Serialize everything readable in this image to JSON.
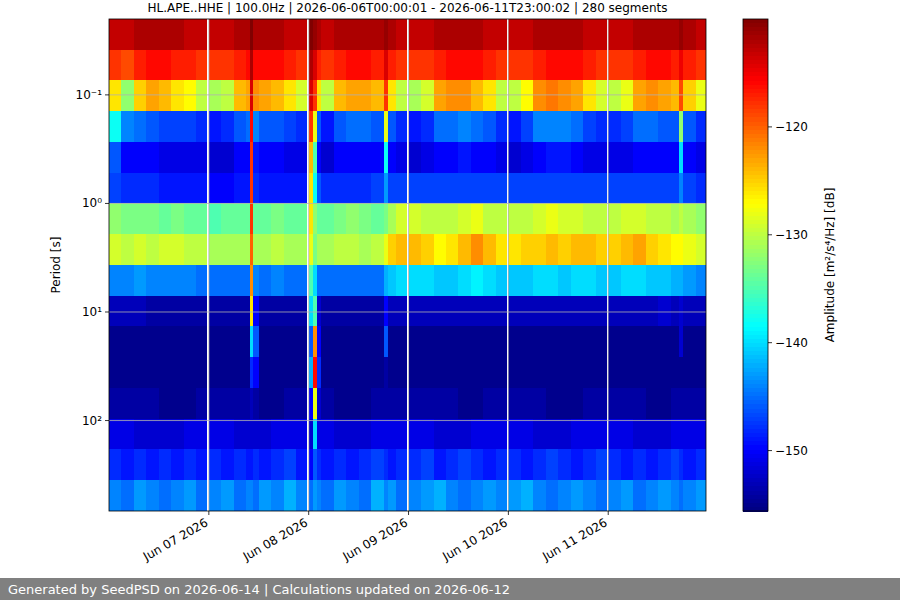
{
  "chart_data": {
    "type": "heatmap",
    "title": "HL.APE..HHE | 100.0Hz | 2026-06-06T00:00:01 - 2026-06-11T23:00:02 | 280 segments",
    "y_label": "Period [s]",
    "footer": "Generated by SeedPSD on 2026-06-14 | Calculations updated on 2026-06-12",
    "log": "y",
    "grid": true,
    "xlim": [
      "2026-06-06T00:00",
      "2026-06-11T23:30"
    ],
    "ylim": [
      0.02,
      681
    ],
    "xticks": [
      {
        "value": "2026-06-07T00:00",
        "label": "Jun 07 2026"
      },
      {
        "value": "2026-06-08T00:00",
        "label": "Jun 08 2026"
      },
      {
        "value": "2026-06-09T00:00",
        "label": "Jun 09 2026"
      },
      {
        "value": "2026-06-10T00:00",
        "label": "Jun 10 2026"
      },
      {
        "value": "2026-06-11T00:00",
        "label": "Jun 11 2026"
      }
    ],
    "yticks": [
      {
        "value": 0.1,
        "label": "10⁻¹"
      },
      {
        "value": 1,
        "label": "10⁰"
      },
      {
        "value": 10,
        "label": "10¹"
      },
      {
        "value": 100,
        "label": "10²"
      }
    ],
    "colorbar": {
      "label": "Amplitude [m²/s⁴/Hz] [dB]",
      "range": [
        -155.6,
        -110
      ],
      "ticks": [
        {
          "value": -150,
          "label": "−150"
        },
        {
          "value": -140,
          "label": "−140"
        },
        {
          "value": -130,
          "label": "−130"
        },
        {
          "value": -120,
          "label": "−120"
        }
      ]
    },
    "x": [
      "2026-06-06T00:00",
      "2026-06-06T03:00",
      "2026-06-06T06:00",
      "2026-06-06T09:00",
      "2026-06-06T12:00",
      "2026-06-06T15:00",
      "2026-06-06T18:00",
      "2026-06-06T21:00",
      "2026-06-06T23:30",
      "2026-06-07T00:00",
      "2026-06-07T03:00",
      "2026-06-07T06:00",
      "2026-06-07T09:00",
      "2026-06-07T09:50",
      "2026-06-07T10:30",
      "2026-06-07T12:00",
      "2026-06-07T15:00",
      "2026-06-07T18:00",
      "2026-06-07T21:00",
      "2026-06-07T23:30",
      "2026-06-08T00:00",
      "2026-06-08T01:00",
      "2026-06-08T02:00",
      "2026-06-08T03:00",
      "2026-06-08T06:00",
      "2026-06-08T09:00",
      "2026-06-08T12:00",
      "2026-06-08T15:00",
      "2026-06-08T18:00",
      "2026-06-08T19:00",
      "2026-06-08T21:00",
      "2026-06-08T23:30",
      "2026-06-09T00:00",
      "2026-06-09T03:00",
      "2026-06-09T06:00",
      "2026-06-09T09:00",
      "2026-06-09T12:00",
      "2026-06-09T15:00",
      "2026-06-09T18:00",
      "2026-06-09T21:00",
      "2026-06-09T23:30",
      "2026-06-10T00:00",
      "2026-06-10T03:00",
      "2026-06-10T06:00",
      "2026-06-10T09:00",
      "2026-06-10T12:00",
      "2026-06-10T15:00",
      "2026-06-10T18:00",
      "2026-06-10T21:00",
      "2026-06-10T23:30",
      "2026-06-11T00:00",
      "2026-06-11T03:00",
      "2026-06-11T06:00",
      "2026-06-11T09:00",
      "2026-06-11T12:00",
      "2026-06-11T15:00",
      "2026-06-11T17:00",
      "2026-06-11T18:00",
      "2026-06-11T21:00"
    ],
    "y": [
      0.028,
      0.053,
      0.102,
      0.196,
      0.376,
      0.72,
      1.39,
      2.66,
      5.1,
      9.8,
      18.8,
      36.1,
      69.5,
      133,
      256,
      492
    ],
    "values": [
      [
        -113,
        -113,
        -112,
        -112,
        -112,
        -112,
        -113,
        -113,
        null,
        -113,
        -113,
        -112,
        -112,
        -110,
        -112,
        -112,
        -112,
        -113,
        -113,
        null,
        -110,
        -111,
        -112,
        -113,
        -112,
        -112,
        -112,
        -112,
        -111,
        -112,
        -113,
        null,
        -113,
        -113,
        -112,
        -112,
        -112,
        -112,
        -113,
        -113,
        null,
        -113,
        -113,
        -112,
        -112,
        -112,
        -112,
        -113,
        -113,
        null,
        -113,
        -113,
        -112,
        -112,
        -112,
        -112,
        -111,
        -112,
        -113
      ],
      [
        -118,
        -119,
        -117,
        -116,
        -116,
        -117,
        -117,
        -118,
        null,
        -118,
        -118,
        -117,
        -116,
        -112,
        -116,
        -116,
        -116,
        -117,
        -118,
        null,
        -112,
        -114,
        -117,
        -118,
        -117,
        -116,
        -116,
        -117,
        -114,
        -117,
        -118,
        null,
        -118,
        -118,
        -117,
        -116,
        -116,
        -116,
        -117,
        -118,
        null,
        -118,
        -118,
        -117,
        -116,
        -116,
        -116,
        -117,
        -118,
        null,
        -118,
        -118,
        -117,
        -116,
        -116,
        -117,
        -115,
        -117,
        -118
      ],
      [
        -126,
        -132,
        -125,
        -123,
        -124,
        -126,
        -127,
        -130,
        null,
        -131,
        -130,
        -124,
        -123,
        -114,
        -122,
        -123,
        -124,
        -126,
        -129,
        null,
        -114,
        -118,
        -126,
        -130,
        -124,
        -123,
        -123,
        -124,
        -118,
        -126,
        -130,
        null,
        -131,
        -129,
        -123,
        -122,
        -122,
        -124,
        -126,
        -130,
        null,
        -130,
        -127,
        -122,
        -121,
        -122,
        -123,
        -126,
        -129,
        null,
        -130,
        -128,
        -123,
        -122,
        -123,
        -124,
        -119,
        -125,
        -128
      ],
      [
        -138,
        -144,
        -145,
        -146,
        -147,
        -147,
        -147,
        -148,
        null,
        -149,
        -148,
        -146,
        -145,
        -116,
        -144,
        -146,
        -146,
        -147,
        -148,
        null,
        -118,
        -128,
        -146,
        -149,
        -146,
        -145,
        -145,
        -146,
        -128,
        -146,
        -148,
        null,
        -149,
        -148,
        -145,
        -145,
        -144,
        -145,
        -146,
        -148,
        null,
        -149,
        -147,
        -144,
        -144,
        -144,
        -145,
        -147,
        -148,
        null,
        -148,
        -147,
        -145,
        -145,
        -146,
        -146,
        -132,
        -146,
        -148
      ],
      [
        -146,
        -150,
        -150,
        -150,
        -151,
        -151,
        -151,
        -151,
        null,
        -152,
        -152,
        -150,
        -150,
        -118,
        -149,
        -150,
        -150,
        -151,
        -151,
        null,
        -124,
        -135,
        -150,
        -152,
        -150,
        -150,
        -150,
        -150,
        -138,
        -150,
        -151,
        null,
        -152,
        -151,
        -150,
        -150,
        -149,
        -150,
        -150,
        -151,
        null,
        -152,
        -151,
        -150,
        -149,
        -149,
        -150,
        -151,
        -151,
        null,
        -151,
        -151,
        -150,
        -150,
        -150,
        -150,
        -140,
        -150,
        -151
      ],
      [
        -147,
        -148,
        -148,
        -148,
        -149,
        -149,
        -149,
        -149,
        null,
        -150,
        -150,
        -149,
        -149,
        -118,
        -148,
        -149,
        -149,
        -149,
        -149,
        null,
        -126,
        -138,
        -146,
        -148,
        -148,
        -148,
        -148,
        -147,
        -143,
        -147,
        -147,
        null,
        -147,
        -147,
        -147,
        -147,
        -147,
        -147,
        -147,
        -147,
        null,
        -147,
        -147,
        -147,
        -147,
        -147,
        -147,
        -147,
        -147,
        null,
        -147,
        -147,
        -147,
        -147,
        -147,
        -147,
        -144,
        -147,
        -148
      ],
      [
        -132,
        -133,
        -133,
        -133,
        -134,
        -133,
        -134,
        -134,
        null,
        -135,
        -134,
        -134,
        -134,
        -118,
        -134,
        -134,
        -133,
        -134,
        -134,
        null,
        -126,
        -132,
        -134,
        -134,
        -133,
        -132,
        -133,
        -134,
        -133,
        -131,
        -129,
        null,
        -129,
        -130,
        -130,
        -130,
        -129,
        -128,
        -130,
        -130,
        null,
        -130,
        -130,
        -129,
        -128,
        -129,
        -129,
        -130,
        -130,
        null,
        -130,
        -129,
        -129,
        -130,
        -130,
        -131,
        -130,
        -131,
        -132
      ],
      [
        -129,
        -130,
        -129,
        -130,
        -129,
        -129,
        -130,
        -130,
        null,
        -131,
        -131,
        -131,
        -131,
        -120,
        -131,
        -131,
        -130,
        -131,
        -131,
        null,
        -128,
        -133,
        -131,
        -131,
        -130,
        -130,
        -131,
        -130,
        -128,
        -125,
        -124,
        null,
        -124,
        -125,
        -127,
        -126,
        -124,
        -122,
        -124,
        -126,
        null,
        -126,
        -125,
        -125,
        -124,
        -125,
        -124,
        -124,
        -125,
        null,
        -125,
        -124,
        -123,
        -125,
        -126,
        -127,
        -127,
        -128,
        -129
      ],
      [
        -144,
        -144,
        -143,
        -144,
        -144,
        -144,
        -144,
        -145,
        null,
        -145,
        -145,
        -145,
        -145,
        -122,
        -144,
        -145,
        -144,
        -145,
        -145,
        null,
        -135,
        -140,
        -145,
        -145,
        -145,
        -145,
        -145,
        -145,
        -142,
        -141,
        -140,
        null,
        -140,
        -140,
        -141,
        -141,
        -140,
        -139,
        -140,
        -141,
        null,
        -141,
        -141,
        -140,
        -140,
        -141,
        -140,
        -140,
        -141,
        null,
        -141,
        -140,
        -140,
        -141,
        -141,
        -142,
        -142,
        -143,
        -144
      ],
      [
        -153,
        -153,
        -153,
        -154,
        -154,
        -154,
        -154,
        -154,
        null,
        -154,
        -154,
        -154,
        -154,
        -126,
        -150,
        -154,
        -154,
        -154,
        -154,
        null,
        -140,
        -135,
        -152,
        -154,
        -154,
        -154,
        -154,
        -154,
        -150,
        -153,
        -153,
        null,
        -153,
        -153,
        -153,
        -153,
        -153,
        -153,
        -153,
        -153,
        null,
        -153,
        -153,
        -153,
        -153,
        -153,
        -153,
        -153,
        -153,
        null,
        -153,
        -153,
        -153,
        -153,
        -152,
        -153,
        -152,
        -153,
        -153
      ],
      [
        -155,
        -155,
        -155,
        -155,
        -155,
        -155,
        -155,
        -155,
        null,
        -155,
        -155,
        -155,
        -155,
        -140,
        -146,
        -155,
        -155,
        -155,
        -155,
        null,
        -146,
        -122,
        -150,
        -155,
        -155,
        -155,
        -155,
        -155,
        -146,
        -155,
        -155,
        null,
        -155,
        -155,
        -155,
        -155,
        -155,
        -155,
        -155,
        -155,
        null,
        -155,
        -155,
        -155,
        -155,
        -155,
        -155,
        -155,
        -155,
        null,
        -155,
        -155,
        -155,
        -155,
        -155,
        -155,
        -152,
        -155,
        -155
      ],
      [
        -155,
        -155,
        -155,
        -155,
        -155,
        -155,
        -155,
        -155,
        null,
        -155,
        -155,
        -155,
        -155,
        -148,
        -150,
        -155,
        -155,
        -155,
        -155,
        null,
        -142,
        -116,
        -148,
        -155,
        -155,
        -155,
        -155,
        -155,
        -154,
        -155,
        -155,
        null,
        -155,
        -155,
        -155,
        -155,
        -155,
        -155,
        -155,
        -155,
        null,
        -155,
        -155,
        -155,
        -155,
        -155,
        -155,
        -155,
        -155,
        null,
        -155,
        -155,
        -155,
        -155,
        -155,
        -155,
        -155,
        -155,
        -155
      ],
      [
        -154,
        -154,
        -154,
        -154,
        -155,
        -155,
        -155,
        -154,
        null,
        -154,
        -154,
        -154,
        -154,
        -153,
        -154,
        -155,
        -155,
        -154,
        -154,
        null,
        -150,
        -128,
        -152,
        -154,
        -155,
        -155,
        -155,
        -154,
        -154,
        -154,
        -154,
        null,
        -154,
        -154,
        -154,
        -154,
        -155,
        -155,
        -154,
        -154,
        null,
        -154,
        -154,
        -154,
        -155,
        -155,
        -155,
        -154,
        -154,
        null,
        -154,
        -154,
        -154,
        -155,
        -155,
        -154,
        -154,
        -154,
        -154
      ],
      [
        -151,
        -151,
        -152,
        -152,
        -152,
        -152,
        -151,
        -151,
        null,
        -151,
        -151,
        -152,
        -152,
        -152,
        -152,
        -152,
        -151,
        -151,
        -151,
        null,
        -152,
        -140,
        -151,
        -151,
        -152,
        -152,
        -152,
        -151,
        -151,
        -151,
        -151,
        null,
        -151,
        -151,
        -152,
        -152,
        -152,
        -151,
        -151,
        -151,
        null,
        -151,
        -151,
        -152,
        -152,
        -152,
        -151,
        -151,
        -151,
        null,
        -151,
        -151,
        -152,
        -152,
        -152,
        -151,
        -151,
        -151,
        -151
      ],
      [
        -148,
        -149,
        -148,
        -149,
        -148,
        -149,
        -148,
        -149,
        null,
        -148,
        -149,
        -148,
        -149,
        -149,
        -148,
        -149,
        -148,
        -147,
        -149,
        null,
        -150,
        -146,
        -148,
        -149,
        -148,
        -149,
        -148,
        -147,
        -148,
        -149,
        -148,
        null,
        -148,
        -147,
        -149,
        -148,
        -147,
        -148,
        -149,
        -148,
        null,
        -148,
        -149,
        -148,
        -147,
        -148,
        -149,
        -148,
        -147,
        null,
        -148,
        -149,
        -148,
        -149,
        -148,
        -147,
        -148,
        -149,
        -148
      ],
      [
        -144,
        -145,
        -143,
        -144,
        -145,
        -144,
        -143,
        -145,
        null,
        -144,
        -143,
        -145,
        -144,
        -144,
        -145,
        -143,
        -144,
        -142,
        -144,
        null,
        -145,
        -143,
        -144,
        -145,
        -143,
        -144,
        -145,
        -142,
        -144,
        -143,
        -145,
        null,
        -144,
        -143,
        -142,
        -144,
        -145,
        -144,
        -143,
        -144,
        null,
        -143,
        -142,
        -144,
        -145,
        -144,
        -143,
        -144,
        -145,
        null,
        -144,
        -143,
        -145,
        -144,
        -143,
        -144,
        -145,
        -144,
        -143
      ]
    ]
  }
}
